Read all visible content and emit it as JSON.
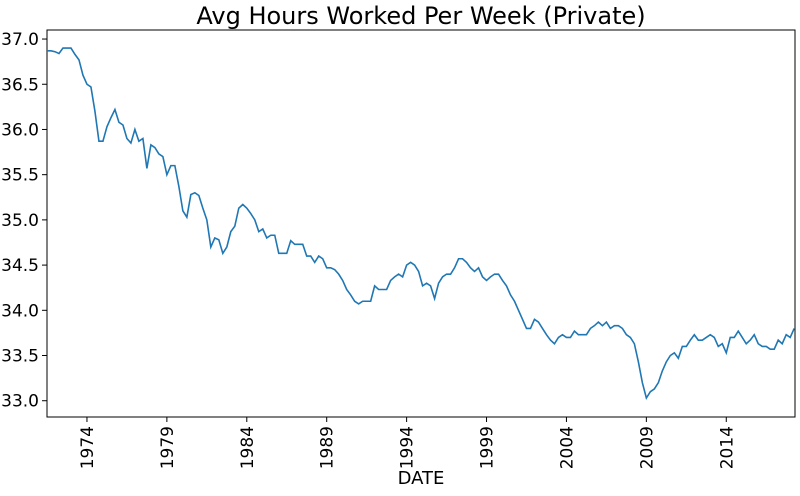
{
  "chart_data": {
    "type": "line",
    "title": "Avg Hours Worked Per Week (Private)",
    "x_label": "DATE",
    "x": [
      1971.5,
      1971.75,
      1972,
      1972.25,
      1972.5,
      1972.75,
      1973,
      1973.25,
      1973.5,
      1973.75,
      1974,
      1974.25,
      1974.5,
      1974.75,
      1975,
      1975.25,
      1975.5,
      1975.75,
      1976,
      1976.25,
      1976.5,
      1976.75,
      1977,
      1977.25,
      1977.5,
      1977.75,
      1978,
      1978.25,
      1978.5,
      1978.75,
      1979,
      1979.25,
      1979.5,
      1979.75,
      1980,
      1980.25,
      1980.5,
      1980.75,
      1981,
      1981.25,
      1981.5,
      1981.75,
      1982,
      1982.25,
      1982.5,
      1982.75,
      1983,
      1983.25,
      1983.5,
      1983.75,
      1984,
      1984.25,
      1984.5,
      1984.75,
      1985,
      1985.25,
      1985.5,
      1985.75,
      1986,
      1986.25,
      1986.5,
      1986.75,
      1987,
      1987.25,
      1987.5,
      1987.75,
      1988,
      1988.25,
      1988.5,
      1988.75,
      1989,
      1989.25,
      1989.5,
      1989.75,
      1990,
      1990.25,
      1990.5,
      1990.75,
      1991,
      1991.25,
      1991.5,
      1991.75,
      1992,
      1992.25,
      1992.5,
      1992.75,
      1993,
      1993.25,
      1993.5,
      1993.75,
      1994,
      1994.25,
      1994.5,
      1994.75,
      1995,
      1995.25,
      1995.5,
      1995.75,
      1996,
      1996.25,
      1996.5,
      1996.75,
      1997,
      1997.25,
      1997.5,
      1997.75,
      1998,
      1998.25,
      1998.5,
      1998.75,
      1999,
      1999.25,
      1999.5,
      1999.75,
      2000,
      2000.25,
      2000.5,
      2000.75,
      2001,
      2001.25,
      2001.5,
      2001.75,
      2002,
      2002.25,
      2002.5,
      2002.75,
      2003,
      2003.25,
      2003.5,
      2003.75,
      2004,
      2004.25,
      2004.5,
      2004.75,
      2005,
      2005.25,
      2005.5,
      2005.75,
      2006,
      2006.25,
      2006.5,
      2006.75,
      2007,
      2007.25,
      2007.5,
      2007.75,
      2008,
      2008.25,
      2008.5,
      2008.75,
      2009,
      2009.25,
      2009.5,
      2009.75,
      2010,
      2010.25,
      2010.5,
      2010.75,
      2011,
      2011.25,
      2011.5,
      2011.75,
      2012,
      2012.25,
      2012.5,
      2012.75,
      2013,
      2013.25,
      2013.5,
      2013.75,
      2014,
      2014.25,
      2014.5,
      2014.75,
      2015,
      2015.25,
      2015.5,
      2015.75,
      2016,
      2016.25,
      2016.5,
      2016.75,
      2017,
      2017.25,
      2017.5,
      2017.75,
      2018,
      2018.25
    ],
    "values": [
      36.87,
      36.87,
      36.86,
      36.84,
      36.9,
      36.9,
      36.9,
      36.83,
      36.77,
      36.6,
      36.5,
      36.47,
      36.2,
      35.87,
      35.87,
      36.03,
      36.13,
      36.22,
      36.08,
      36.05,
      35.9,
      35.85,
      36.0,
      35.87,
      35.9,
      35.57,
      35.83,
      35.8,
      35.73,
      35.7,
      35.5,
      35.6,
      35.6,
      35.37,
      35.1,
      35.03,
      35.28,
      35.3,
      35.27,
      35.13,
      35.0,
      34.7,
      34.8,
      34.78,
      34.63,
      34.7,
      34.87,
      34.93,
      35.13,
      35.17,
      35.13,
      35.07,
      35.0,
      34.87,
      34.9,
      34.8,
      34.83,
      34.83,
      34.63,
      34.63,
      34.63,
      34.77,
      34.73,
      34.73,
      34.73,
      34.6,
      34.6,
      34.53,
      34.6,
      34.57,
      34.47,
      34.47,
      34.45,
      34.4,
      34.33,
      34.23,
      34.17,
      34.1,
      34.07,
      34.1,
      34.1,
      34.1,
      34.27,
      34.23,
      34.23,
      34.23,
      34.33,
      34.37,
      34.4,
      34.37,
      34.5,
      34.53,
      34.5,
      34.43,
      34.27,
      34.3,
      34.27,
      34.13,
      34.3,
      34.37,
      34.4,
      34.4,
      34.47,
      34.57,
      34.57,
      34.53,
      34.47,
      34.43,
      34.47,
      34.37,
      34.33,
      34.37,
      34.4,
      34.4,
      34.33,
      34.27,
      34.17,
      34.1,
      34.0,
      33.9,
      33.8,
      33.8,
      33.9,
      33.87,
      33.8,
      33.73,
      33.67,
      33.63,
      33.7,
      33.73,
      33.7,
      33.7,
      33.77,
      33.73,
      33.73,
      33.73,
      33.8,
      33.83,
      33.87,
      33.83,
      33.87,
      33.8,
      33.83,
      33.83,
      33.8,
      33.73,
      33.7,
      33.63,
      33.43,
      33.2,
      33.03,
      33.1,
      33.13,
      33.2,
      33.33,
      33.43,
      33.5,
      33.53,
      33.47,
      33.6,
      33.6,
      33.67,
      33.73,
      33.67,
      33.67,
      33.7,
      33.73,
      33.7,
      33.6,
      33.63,
      33.53,
      33.7,
      33.7,
      33.77,
      33.7,
      33.63,
      33.67,
      33.73,
      33.63,
      33.6,
      33.6,
      33.57,
      33.57,
      33.67,
      33.63,
      33.73,
      33.7,
      33.8
    ],
    "color": "#1f77b4",
    "xlim": [
      1971.5,
      2018.3
    ],
    "xticks": [
      1974,
      1979,
      1984,
      1989,
      1994,
      1999,
      2004,
      2009,
      2014
    ],
    "ylim": [
      32.82,
      37.1
    ],
    "yticks": [
      {
        "value": 33,
        "label": "33.0"
      },
      33.5,
      {
        "value": 34,
        "label": "34.0"
      },
      34.5,
      {
        "value": 35,
        "label": "35.0"
      },
      35.5,
      {
        "value": 36,
        "label": "36.0"
      },
      36.5,
      {
        "value": 37,
        "label": "37.0"
      }
    ],
    "grid": false
  }
}
